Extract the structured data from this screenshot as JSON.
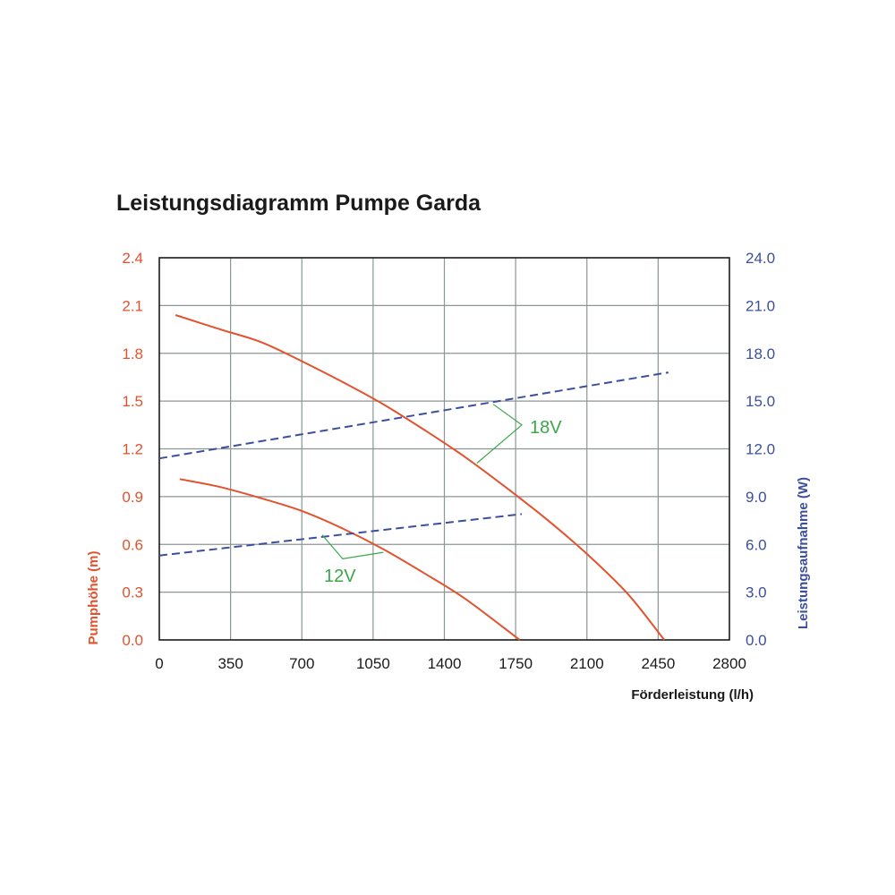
{
  "chart_data": {
    "type": "line",
    "title": "Leistungsdiagramm Pumpe Garda",
    "xlabel": "Förderleistung (l/h)",
    "ylabel_left": "Pumphöhe (m)",
    "ylabel_right": "Leistungsaufnahme (W)",
    "xlim": [
      0,
      2800
    ],
    "ylim_left": [
      0,
      2.4
    ],
    "ylim_right": [
      0,
      24
    ],
    "x_ticks": [
      "0",
      "350",
      "700",
      "1050",
      "1400",
      "1750",
      "2100",
      "2450",
      "2800"
    ],
    "y_left_ticks": [
      "0.0",
      "0.3",
      "0.6",
      "0.9",
      "1.2",
      "1.5",
      "1.8",
      "2.1",
      "2.4"
    ],
    "y_right_ticks": [
      "0.0",
      "3.0",
      "6.0",
      "9.0",
      "12.0",
      "15.0",
      "18.0",
      "21.0",
      "24.0"
    ],
    "grid": true,
    "colors": {
      "head_curve": "#e2532d",
      "power_curve": "#3c4f9c",
      "annotation": "#3aa84a",
      "grid": "#8c9696",
      "frame": "#1a1a1a"
    },
    "annotations": [
      {
        "text": "18V"
      },
      {
        "text": "12V"
      }
    ],
    "series": [
      {
        "voltage": "18V",
        "axis": "left",
        "style": "solid",
        "x": [
          80,
          300,
          500,
          700,
          900,
          1100,
          1300,
          1500,
          1700,
          1900,
          2100,
          2300,
          2480
        ],
        "y": [
          2.04,
          1.95,
          1.87,
          1.75,
          1.62,
          1.48,
          1.32,
          1.15,
          0.96,
          0.76,
          0.54,
          0.29,
          0.0
        ]
      },
      {
        "voltage": "18V",
        "axis": "right",
        "style": "dashed",
        "x": [
          0,
          2500
        ],
        "y": [
          11.4,
          16.8
        ]
      },
      {
        "voltage": "12V",
        "axis": "left",
        "style": "solid",
        "x": [
          100,
          300,
          500,
          700,
          900,
          1100,
          1300,
          1500,
          1770
        ],
        "y": [
          1.01,
          0.96,
          0.89,
          0.81,
          0.7,
          0.57,
          0.42,
          0.26,
          0.0
        ]
      },
      {
        "voltage": "12V",
        "axis": "right",
        "style": "dashed",
        "x": [
          0,
          1780
        ],
        "y": [
          5.3,
          7.9
        ]
      }
    ]
  }
}
